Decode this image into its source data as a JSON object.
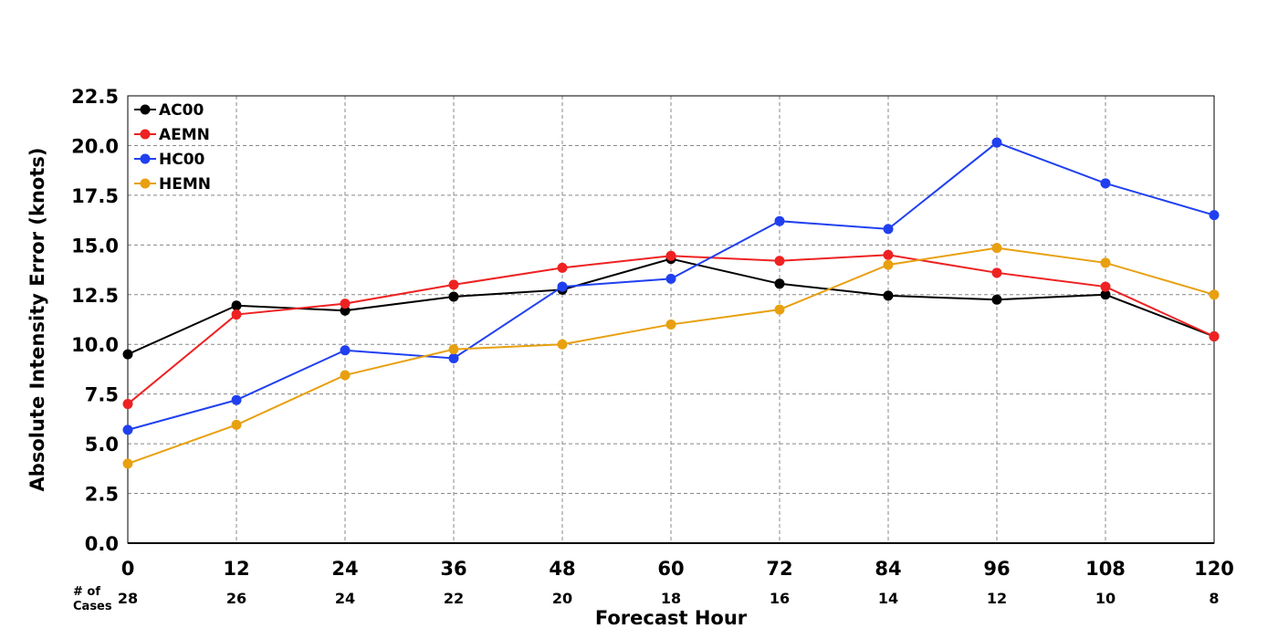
{
  "chart_data": {
    "type": "line",
    "title": "",
    "xlabel": "Forecast Hour",
    "ylabel": "Absolute Intensity Error (knots)",
    "x": [
      0,
      12,
      24,
      36,
      48,
      60,
      72,
      84,
      96,
      108,
      120
    ],
    "x_tick_labels": [
      "0",
      "12",
      "24",
      "36",
      "48",
      "60",
      "72",
      "84",
      "96",
      "108",
      "120"
    ],
    "xlim": [
      0,
      120
    ],
    "ylim": [
      0,
      22.5
    ],
    "y_ticks": [
      0,
      2.5,
      5,
      7.5,
      10,
      12.5,
      15,
      17.5,
      20,
      22.5
    ],
    "y_tick_labels": [
      "0.0",
      "2.5",
      "5.0",
      "7.5",
      "10.0",
      "12.5",
      "15.0",
      "17.5",
      "20.0",
      "22.5"
    ],
    "grid": true,
    "legend_position": "top-left",
    "cases_label": [
      "# of",
      "Cases"
    ],
    "num_cases": [
      "28",
      "26",
      "24",
      "22",
      "20",
      "18",
      "16",
      "14",
      "12",
      "10",
      "8"
    ],
    "series": [
      {
        "name": "AC00",
        "color": "#000000",
        "values": [
          9.5,
          11.95,
          11.7,
          12.4,
          12.75,
          14.3,
          13.05,
          12.45,
          12.25,
          12.5,
          10.4
        ]
      },
      {
        "name": "AEMN",
        "color": "#ee2222",
        "values": [
          7.0,
          11.5,
          12.05,
          13.0,
          13.85,
          14.45,
          14.2,
          14.5,
          13.6,
          12.9,
          10.4
        ]
      },
      {
        "name": "HC00",
        "color": "#2040f0",
        "values": [
          5.7,
          7.2,
          9.7,
          9.3,
          12.9,
          13.3,
          16.2,
          15.8,
          20.15,
          18.1,
          16.5
        ]
      },
      {
        "name": "HEMN",
        "color": "#e8a010",
        "values": [
          4.0,
          5.95,
          8.45,
          9.75,
          10.0,
          11.0,
          11.75,
          14.0,
          14.85,
          14.1,
          12.5
        ]
      }
    ]
  }
}
